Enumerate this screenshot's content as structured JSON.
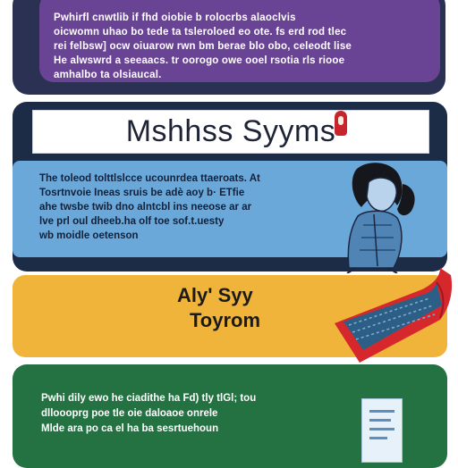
{
  "colors": {
    "purple": "#6a4494",
    "navy": "#1c2c47",
    "blue": "#6ba8da",
    "yellow": "#f0b43a",
    "green": "#247142",
    "red": "#c8242b"
  },
  "purple_section": {
    "lines": [
      "Pwhirfl cnwtlib if fhd oiobie b rolocrbs alaoclvis",
      "oicwomn uhao bo tede ta tsleroloed eo ote. fs erd rod tlec",
      "rei felbsw] ocw oiuarow rwn bm berae blo obo, celeodt lise",
      "He alwswrd a seeaacs. tr oorogo owe ooel rsotia rls riooe",
      "amhalbo ta olsiaucal."
    ]
  },
  "blue_section": {
    "title": "Mshhss Syyms",
    "lines": [
      "The toleod tolttlslcce ucounrdea ttaeroats. At",
      "Tosrtnvoie Ineas sruis be adè aoy b· ETfie",
      "ahe twsbe twib dno alntcbl ins neeose ar ar",
      "lve prl oul dheeb.ha olf toe sof.t.uesty",
      "wb moidle oetenson"
    ]
  },
  "yellow_section": {
    "line1": "Aly' Syy",
    "line2": "Toyrom"
  },
  "green_section": {
    "lines": [
      "Pwhi dily ewo he ciadithe ha Fd) tly tlGl; tou",
      "dlloooprg poe tle oie daloaoe onrele",
      "Mlde ara po ca el ha ba sesrtuehoun"
    ]
  },
  "icons": {
    "figure": "person-illustration",
    "cloth": "blanket-illustration",
    "pin": "map-pin-icon",
    "document": "document-icon"
  }
}
